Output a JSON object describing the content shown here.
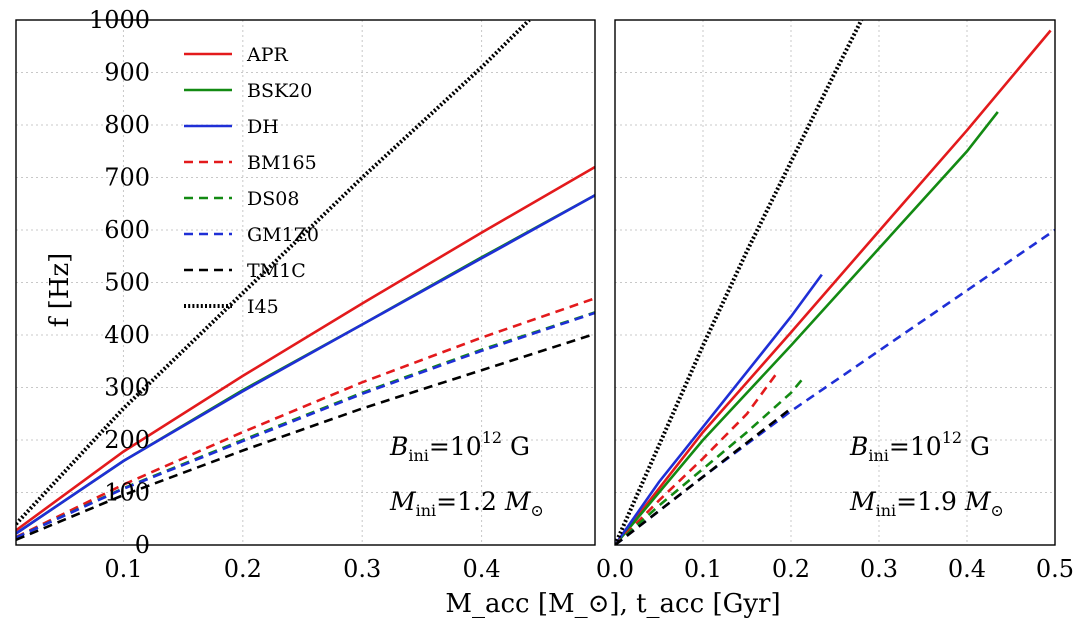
{
  "chart_data": {
    "type": "line",
    "ylabel": "f [Hz]",
    "xlabel": "M_acc [M_⊙], t_acc [Gyr]",
    "ylim": [
      0,
      1000
    ],
    "y_ticks": [
      0,
      100,
      200,
      300,
      400,
      500,
      600,
      700,
      800,
      900,
      1000
    ],
    "legend": [
      {
        "name": "APR",
        "color": "#e31a1c",
        "style": "solid"
      },
      {
        "name": "BSK20",
        "color": "#138a13",
        "style": "solid"
      },
      {
        "name": "DH",
        "color": "#1f2fd6",
        "style": "solid"
      },
      {
        "name": "BM165",
        "color": "#e31a1c",
        "style": "dashed"
      },
      {
        "name": "DS08",
        "color": "#138a13",
        "style": "dashed"
      },
      {
        "name": "GM1Z0",
        "color": "#1f2fd6",
        "style": "dashed"
      },
      {
        "name": "TM1C",
        "color": "#000000",
        "style": "dashed"
      },
      {
        "name": "I45",
        "color": "#000000",
        "style": "dotted"
      }
    ],
    "panels": [
      {
        "xlim": [
          0.01,
          0.495
        ],
        "x_ticks": [
          0.1,
          0.2,
          0.3,
          0.4
        ],
        "x_tick_labels": [
          "0.1",
          "0.2",
          "0.3",
          "0.4"
        ],
        "annotation": {
          "b_label": "B",
          "b_sub": "ini",
          "b_rhs": "=10",
          "b_exp": "12",
          "b_unit": " G",
          "m_label": "M",
          "m_sub": "ini",
          "m_rhs": "=1.2 ",
          "m_unit": "M",
          "m_unit_sub": "⊙"
        },
        "series": [
          {
            "name": "APR",
            "x": [
              0.01,
              0.1,
              0.2,
              0.3,
              0.4,
              0.495
            ],
            "y": [
              28,
              178,
              322,
              460,
              595,
              720
            ]
          },
          {
            "name": "BSK20",
            "x": [
              0.01,
              0.1,
              0.2,
              0.3,
              0.4,
              0.495
            ],
            "y": [
              22,
              160,
              295,
              420,
              548,
              666
            ]
          },
          {
            "name": "DH",
            "x": [
              0.01,
              0.1,
              0.2,
              0.3,
              0.4,
              0.495
            ],
            "y": [
              22,
              160,
              293,
              420,
              546,
              666
            ]
          },
          {
            "name": "BM165",
            "x": [
              0.01,
              0.1,
              0.2,
              0.3,
              0.4,
              0.495
            ],
            "y": [
              15,
              115,
              215,
              310,
              395,
              470
            ]
          },
          {
            "name": "DS08",
            "x": [
              0.01,
              0.1,
              0.2,
              0.3,
              0.4,
              0.495
            ],
            "y": [
              14,
              108,
              200,
              290,
              372,
              443
            ]
          },
          {
            "name": "GM1Z0",
            "x": [
              0.01,
              0.1,
              0.2,
              0.3,
              0.4,
              0.495
            ],
            "y": [
              14,
              107,
              198,
              288,
              370,
              442
            ]
          },
          {
            "name": "TM1C",
            "x": [
              0.01,
              0.1,
              0.2,
              0.3,
              0.4,
              0.495
            ],
            "y": [
              10,
              95,
              180,
              260,
              333,
              402
            ]
          },
          {
            "name": "I45",
            "x": [
              0.01,
              0.1,
              0.2,
              0.3,
              0.4,
              0.44
            ],
            "y": [
              40,
              260,
              480,
              700,
              910,
              1000
            ]
          }
        ]
      },
      {
        "xlim": [
          0.0,
          0.5
        ],
        "x_ticks": [
          0.0,
          0.1,
          0.2,
          0.3,
          0.4,
          0.5
        ],
        "x_tick_labels": [
          "0.0",
          "0.1",
          "0.2",
          "0.3",
          "0.4",
          "0.5"
        ],
        "annotation": {
          "b_label": "B",
          "b_sub": "ini",
          "b_rhs": "=10",
          "b_exp": "12",
          "b_unit": " G",
          "m_label": "M",
          "m_sub": "ini",
          "m_rhs": "=1.9 ",
          "m_unit": "M",
          "m_unit_sub": "⊙"
        },
        "series": [
          {
            "name": "APR",
            "x": [
              0.0,
              0.1,
              0.2,
              0.3,
              0.4,
              0.495
            ],
            "y": [
              0,
              215,
              405,
              598,
              790,
              980
            ]
          },
          {
            "name": "BSK20",
            "x": [
              0.0,
              0.1,
              0.2,
              0.3,
              0.4,
              0.435
            ],
            "y": [
              0,
              200,
              380,
              565,
              750,
              825
            ]
          },
          {
            "name": "DH",
            "x": [
              0.0,
              0.05,
              0.1,
              0.15,
              0.2,
              0.235
            ],
            "y": [
              0,
              120,
              225,
              330,
              435,
              515
            ]
          },
          {
            "name": "BM165",
            "x": [
              0.0,
              0.05,
              0.1,
              0.15,
              0.185
            ],
            "y": [
              0,
              85,
              165,
              250,
              330
            ]
          },
          {
            "name": "DS08",
            "x": [
              0.0,
              0.05,
              0.1,
              0.15,
              0.2,
              0.215
            ],
            "y": [
              0,
              75,
              145,
              215,
              290,
              320
            ]
          },
          {
            "name": "GM1Z0",
            "x": [
              0.0,
              0.1,
              0.2,
              0.3,
              0.4,
              0.5
            ],
            "y": [
              0,
              130,
              255,
              370,
              485,
              600
            ]
          },
          {
            "name": "TM1C",
            "x": [
              0.0,
              0.05,
              0.1,
              0.15,
              0.2
            ],
            "y": [
              0,
              65,
              130,
              195,
              260
            ]
          },
          {
            "name": "I45",
            "x": [
              0.0,
              0.05,
              0.1,
              0.15,
              0.2,
              0.25,
              0.28
            ],
            "y": [
              0,
              190,
              380,
              560,
              730,
              900,
              1000
            ]
          }
        ]
      }
    ]
  }
}
